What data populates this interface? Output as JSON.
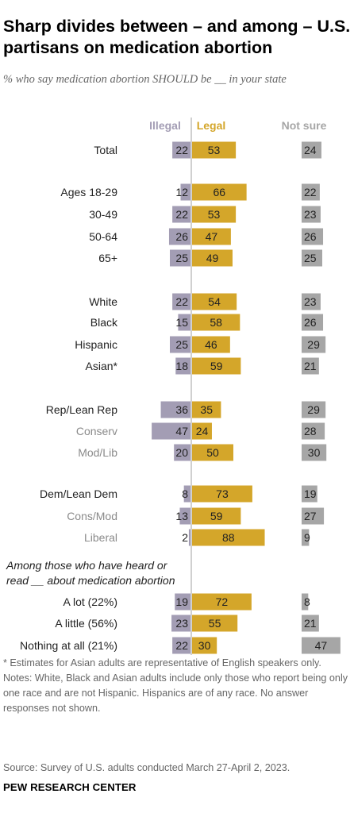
{
  "title": "Sharp divides between – and among – U.S. partisans on medication abortion",
  "subtitle": "% who say medication abortion SHOULD be __ in your state",
  "chart_data": {
    "type": "bar",
    "orientation": "horizontal",
    "layout": "diverging with separate column",
    "column_headers": [
      "Illegal",
      "Legal",
      "Not sure"
    ],
    "series": [
      {
        "name": "Illegal",
        "color": "#a39db4"
      },
      {
        "name": "Legal",
        "color": "#d4a62a"
      },
      {
        "name": "Not sure",
        "color": "#a6a6a6"
      }
    ],
    "section_heading": "Among those who have heard or read __ about medication abortion",
    "rows": [
      {
        "label": "Total",
        "style": "dark",
        "illegal": 22,
        "legal": 53,
        "not_sure": 24
      },
      {
        "label": "Ages 18-29",
        "style": "dark",
        "illegal": 12,
        "legal": 66,
        "not_sure": 22
      },
      {
        "label": "30-49",
        "style": "dark",
        "illegal": 22,
        "legal": 53,
        "not_sure": 23
      },
      {
        "label": "50-64",
        "style": "dark",
        "illegal": 26,
        "legal": 47,
        "not_sure": 26
      },
      {
        "label": "65+",
        "style": "dark",
        "illegal": 25,
        "legal": 49,
        "not_sure": 25
      },
      {
        "label": "White",
        "style": "dark",
        "illegal": 22,
        "legal": 54,
        "not_sure": 23
      },
      {
        "label": "Black",
        "style": "dark",
        "illegal": 15,
        "legal": 58,
        "not_sure": 26
      },
      {
        "label": "Hispanic",
        "style": "dark",
        "illegal": 25,
        "legal": 46,
        "not_sure": 29
      },
      {
        "label": "Asian*",
        "style": "dark",
        "illegal": 18,
        "legal": 59,
        "not_sure": 21
      },
      {
        "label": "Rep/Lean Rep",
        "style": "dark",
        "illegal": 36,
        "legal": 35,
        "not_sure": 29
      },
      {
        "label": "Conserv",
        "style": "light",
        "illegal": 47,
        "legal": 24,
        "not_sure": 28
      },
      {
        "label": "Mod/Lib",
        "style": "light",
        "illegal": 20,
        "legal": 50,
        "not_sure": 30
      },
      {
        "label": "Dem/Lean Dem",
        "style": "dark",
        "illegal": 8,
        "legal": 73,
        "not_sure": 19
      },
      {
        "label": "Cons/Mod",
        "style": "light",
        "illegal": 13,
        "legal": 59,
        "not_sure": 27
      },
      {
        "label": "Liberal",
        "style": "light",
        "illegal": 2,
        "legal": 88,
        "not_sure": 9
      },
      {
        "label": "A lot (22%)",
        "style": "dark",
        "illegal": 19,
        "legal": 72,
        "not_sure": 8
      },
      {
        "label": "A little (56%)",
        "style": "dark",
        "illegal": 23,
        "legal": 55,
        "not_sure": 21
      },
      {
        "label": "Nothing at all (21%)",
        "style": "dark",
        "illegal": 22,
        "legal": 30,
        "not_sure": 47
      }
    ]
  },
  "notes": {
    "asterisk_note": "* Estimates for Asian adults are representative of English speakers only.",
    "race_note": "Notes: White, Black and Asian adults include only those who report being only one race and are not Hispanic. Hispanics are of any race. No answer responses not shown.",
    "source": "Source: Survey of U.S. adults conducted March 27-April 2, 2023."
  },
  "brand": "PEW RESEARCH CENTER"
}
